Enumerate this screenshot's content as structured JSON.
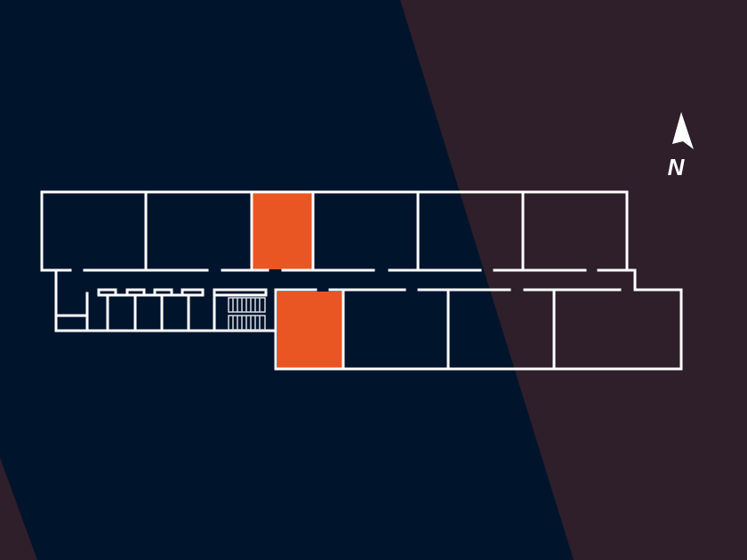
{
  "map": {
    "type": "floor-plan",
    "compass": {
      "label": "N",
      "icon": "north-arrow-icon"
    },
    "colors": {
      "background_primary": "#00142c",
      "background_secondary": "#2e1f2a",
      "walls": "#ffffff",
      "highlight": "#e95624"
    },
    "highlighted_rooms": [
      "upper-row-room-3",
      "lower-row-room-1"
    ]
  }
}
